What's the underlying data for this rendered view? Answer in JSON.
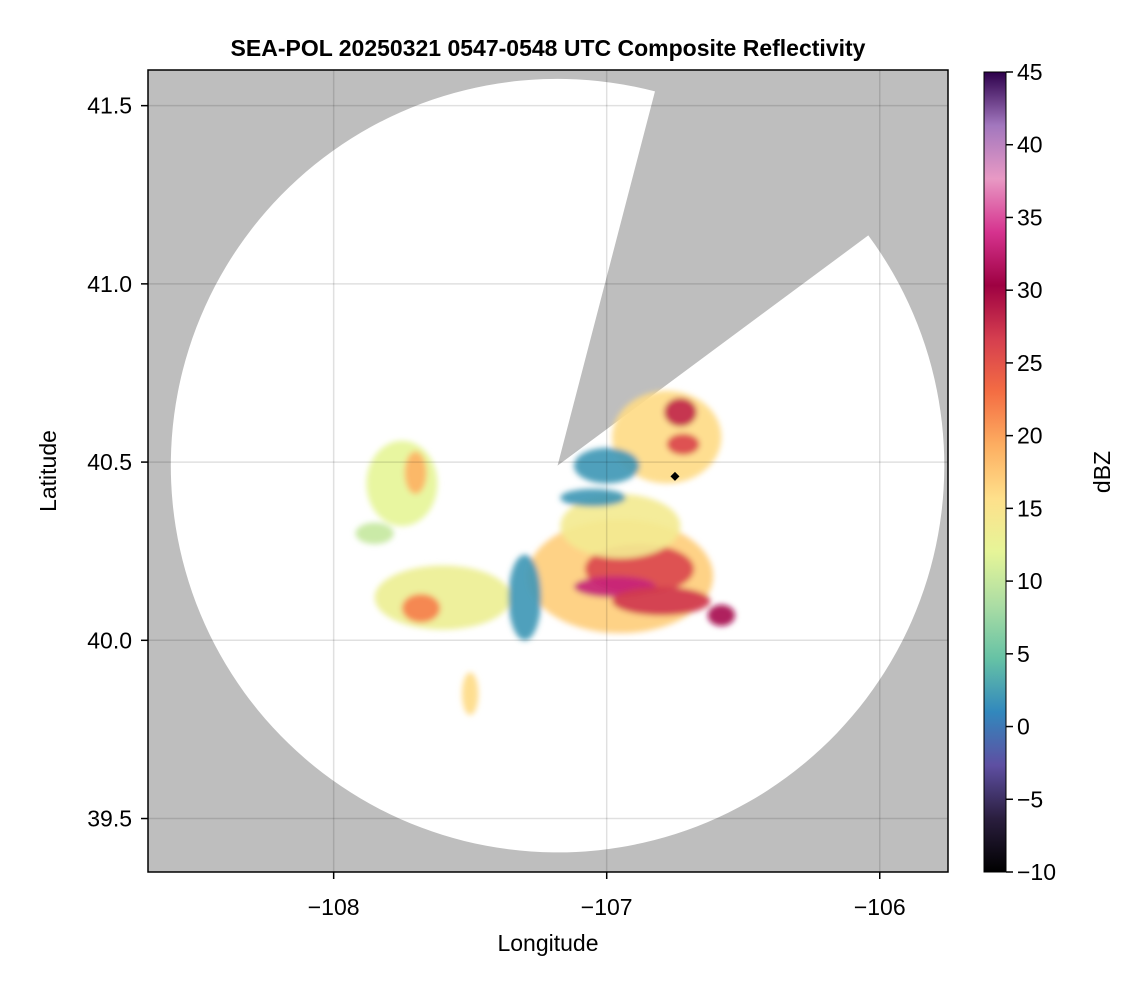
{
  "chart_data": {
    "type": "heatmap",
    "title": "SEA-POL 20250321 0547-0548 UTC Composite Reflectivity",
    "xlabel": "Longitude",
    "ylabel": "Latitude",
    "xlim": [
      -108.68,
      -105.75
    ],
    "ylim": [
      39.35,
      41.6
    ],
    "xticks": [
      -108,
      -107,
      -106
    ],
    "xtick_labels": [
      "−108",
      "−107",
      "−106"
    ],
    "yticks": [
      39.5,
      40.0,
      40.5,
      41.0,
      41.5
    ],
    "ytick_labels": [
      "39.5",
      "40.0",
      "40.5",
      "41.0",
      "41.5"
    ],
    "grid": true,
    "background_color": "#bebebe",
    "radar": {
      "center": [
        -107.18,
        40.49
      ],
      "range_edge_lat_south": 39.38,
      "range_edge_lat_north": 41.55,
      "blocked_sector_edges": [
        [
          -106.83,
          41.52
        ],
        [
          -106.07,
          41.12
        ]
      ]
    },
    "site_marker": {
      "lon": -106.75,
      "lat": 40.46,
      "shape": "diamond",
      "color": "#000000"
    },
    "colorbar": {
      "label": "dBZ",
      "min": -10,
      "max": 45,
      "ticks": [
        -10,
        -5,
        0,
        5,
        10,
        15,
        20,
        25,
        30,
        35,
        40,
        45
      ],
      "tick_labels": [
        "−10",
        "−5",
        "0",
        "5",
        "10",
        "15",
        "20",
        "25",
        "30",
        "35",
        "40",
        "45"
      ],
      "colormap": [
        "#000000",
        "#2a1e3e",
        "#5e4fa2",
        "#3288bd",
        "#66c2a5",
        "#abdda4",
        "#e6f598",
        "#fee08b",
        "#fdae61",
        "#f46d43",
        "#d53e4f",
        "#9e0142",
        "#d6338f",
        "#e899c4",
        "#a277be",
        "#2d004b"
      ]
    },
    "echo_regions": [
      {
        "name": "main-southern-cell",
        "lon": -106.95,
        "lat": 40.18,
        "rx": 0.34,
        "ry": 0.16,
        "dbz": 17
      },
      {
        "name": "main-southern-core-1",
        "lon": -106.88,
        "lat": 40.2,
        "rx": 0.2,
        "ry": 0.07,
        "dbz": 26
      },
      {
        "name": "main-southern-core-2",
        "lon": -106.97,
        "lat": 40.15,
        "rx": 0.15,
        "ry": 0.03,
        "dbz": 33
      },
      {
        "name": "main-southern-core-3",
        "lon": -106.8,
        "lat": 40.11,
        "rx": 0.18,
        "ry": 0.04,
        "dbz": 27
      },
      {
        "name": "central-north-cell",
        "lon": -106.95,
        "lat": 40.32,
        "rx": 0.22,
        "ry": 0.09,
        "dbz": 14
      },
      {
        "name": "northeast-cell",
        "lon": -106.78,
        "lat": 40.57,
        "rx": 0.2,
        "ry": 0.13,
        "dbz": 16
      },
      {
        "name": "northeast-core",
        "lon": -106.73,
        "lat": 40.64,
        "rx": 0.06,
        "ry": 0.04,
        "dbz": 28
      },
      {
        "name": "northeast-core-2",
        "lon": -106.72,
        "lat": 40.55,
        "rx": 0.06,
        "ry": 0.03,
        "dbz": 26
      },
      {
        "name": "northeast-weak-band",
        "lon": -107.0,
        "lat": 40.49,
        "rx": 0.12,
        "ry": 0.05,
        "dbz": 2
      },
      {
        "name": "weak-band-south",
        "lon": -107.05,
        "lat": 40.4,
        "rx": 0.12,
        "ry": 0.025,
        "dbz": 2
      },
      {
        "name": "western-cell",
        "lon": -107.6,
        "lat": 40.12,
        "rx": 0.25,
        "ry": 0.09,
        "dbz": 13
      },
      {
        "name": "western-core",
        "lon": -107.68,
        "lat": 40.09,
        "rx": 0.07,
        "ry": 0.04,
        "dbz": 22
      },
      {
        "name": "western-trough",
        "lon": -107.3,
        "lat": 40.12,
        "rx": 0.06,
        "ry": 0.12,
        "dbz": 2
      },
      {
        "name": "northwest-cell",
        "lon": -107.75,
        "lat": 40.44,
        "rx": 0.13,
        "ry": 0.12,
        "dbz": 12
      },
      {
        "name": "northwest-core",
        "lon": -107.7,
        "lat": 40.47,
        "rx": 0.04,
        "ry": 0.06,
        "dbz": 19
      },
      {
        "name": "west-small-cell",
        "lon": -107.85,
        "lat": 40.3,
        "rx": 0.07,
        "ry": 0.03,
        "dbz": 10
      },
      {
        "name": "southwest-line",
        "lon": -107.5,
        "lat": 39.85,
        "rx": 0.03,
        "ry": 0.06,
        "dbz": 16
      },
      {
        "name": "southeast-core",
        "lon": -106.58,
        "lat": 40.07,
        "rx": 0.05,
        "ry": 0.03,
        "dbz": 31
      }
    ]
  }
}
